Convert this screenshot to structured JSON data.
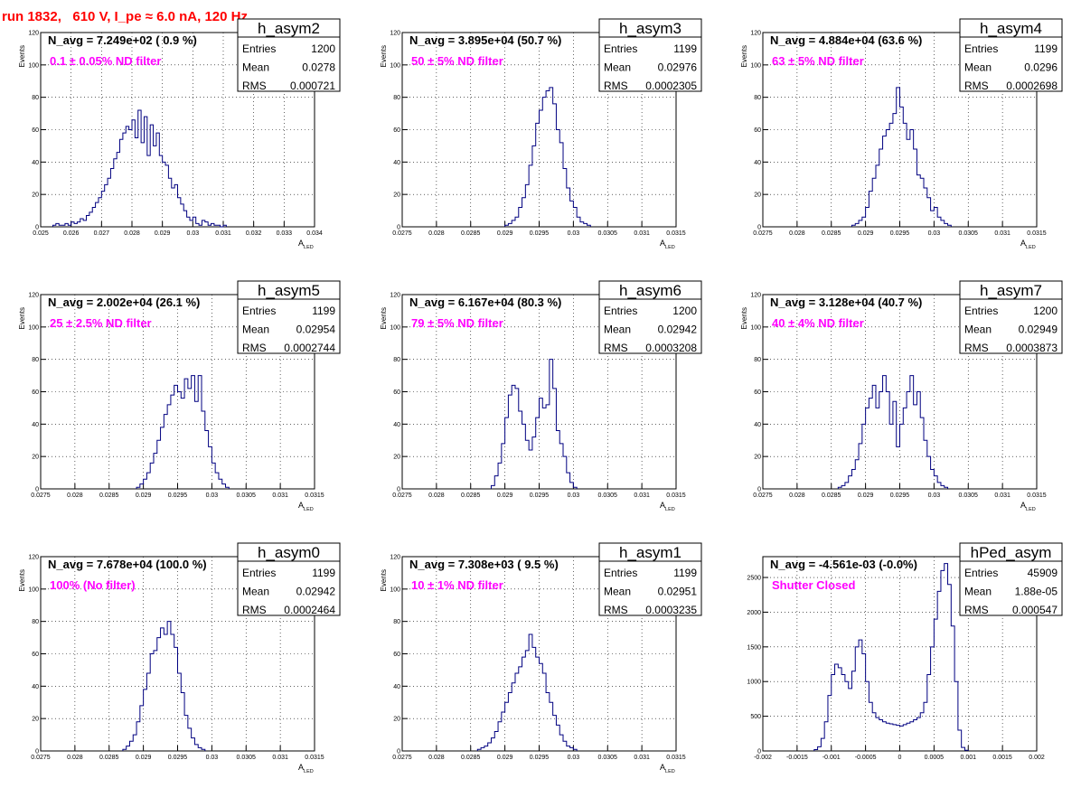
{
  "page": {
    "title": "run 1832,   610 V, I_pe ≈ 6.0 nA, 120 Hz"
  },
  "chart_data": [
    {
      "type": "histogram",
      "name": "h_asym2",
      "navg": "N_avg = 7.249e+02 ( 0.9 %)",
      "note": "0.1 ± 0.05% ND filter",
      "stats": {
        "entries": "1200",
        "mean": "0.0278",
        "rms": "0.000721"
      },
      "xlim": [
        0.025,
        0.034
      ],
      "ylim": [
        0,
        120
      ],
      "xticks": [
        "0.025",
        "0.026",
        "0.027",
        "0.028",
        "0.029",
        "0.03",
        "0.031",
        "0.032",
        "0.033",
        "0.034"
      ],
      "yticks": [
        "0",
        "20",
        "40",
        "60",
        "80",
        "100",
        "120"
      ],
      "xlabel": "A",
      "xlabel_sub": "LED",
      "ylabel": "Events",
      "x_start": 0.0254,
      "bin_width": 0.0001,
      "values": [
        1,
        2,
        1,
        1,
        2,
        1,
        3,
        2,
        3,
        5,
        4,
        7,
        9,
        12,
        15,
        18,
        22,
        26,
        30,
        36,
        42,
        46,
        54,
        58,
        62,
        60,
        66,
        55,
        72,
        52,
        68,
        44,
        63,
        50,
        58,
        44,
        40,
        38,
        30,
        24,
        26,
        18,
        14,
        10,
        6,
        4,
        6,
        2,
        1,
        4,
        3,
        1,
        2,
        1,
        1,
        0,
        1
      ]
    },
    {
      "type": "histogram",
      "name": "h_asym3",
      "navg": "N_avg = 3.895e+04 (50.7 %)",
      "note": "50 ± 5% ND filter",
      "stats": {
        "entries": "1199",
        "mean": "0.02976",
        "rms": "0.0002305"
      },
      "xlim": [
        0.0275,
        0.0315
      ],
      "ylim": [
        0,
        120
      ],
      "xticks": [
        "0.0275",
        "0.028",
        "0.0285",
        "0.029",
        "0.0295",
        "0.03",
        "0.0305",
        "0.031",
        "0.0315"
      ],
      "yticks": [
        "0",
        "20",
        "40",
        "60",
        "80",
        "100",
        "120"
      ],
      "xlabel": "A",
      "xlabel_sub": "LED",
      "ylabel": "Events",
      "x_start": 0.029,
      "bin_width": 5e-05,
      "values": [
        1,
        2,
        4,
        6,
        12,
        18,
        26,
        38,
        50,
        64,
        72,
        80,
        84,
        86,
        76,
        60,
        52,
        36,
        24,
        16,
        12,
        6,
        3,
        2,
        1
      ]
    },
    {
      "type": "histogram",
      "name": "h_asym4",
      "navg": "N_avg = 4.884e+04 (63.6 %)",
      "note": "63 ± 5% ND filter",
      "stats": {
        "entries": "1199",
        "mean": "0.0296",
        "rms": "0.0002698"
      },
      "xlim": [
        0.0275,
        0.0315
      ],
      "ylim": [
        0,
        120
      ],
      "xticks": [
        "0.0275",
        "0.028",
        "0.0285",
        "0.029",
        "0.0295",
        "0.03",
        "0.0305",
        "0.031",
        "0.0315"
      ],
      "yticks": [
        "0",
        "20",
        "40",
        "60",
        "80",
        "100",
        "120"
      ],
      "xlabel": "A",
      "xlabel_sub": "LED",
      "ylabel": "Events",
      "x_start": 0.0288,
      "bin_width": 5e-05,
      "values": [
        1,
        2,
        4,
        6,
        12,
        22,
        30,
        38,
        48,
        56,
        60,
        64,
        70,
        86,
        74,
        64,
        54,
        60,
        48,
        32,
        30,
        24,
        18,
        10,
        12,
        6,
        4,
        2,
        1
      ]
    },
    {
      "type": "histogram",
      "name": "h_asym5",
      "navg": "N_avg = 2.002e+04 (26.1 %)",
      "note": "25 ± 2.5% ND filter",
      "stats": {
        "entries": "1199",
        "mean": "0.02954",
        "rms": "0.0002744"
      },
      "xlim": [
        0.0275,
        0.0315
      ],
      "ylim": [
        0,
        120
      ],
      "xticks": [
        "0.0275",
        "0.028",
        "0.0285",
        "0.029",
        "0.0295",
        "0.03",
        "0.0305",
        "0.031",
        "0.0315"
      ],
      "yticks": [
        "0",
        "20",
        "40",
        "60",
        "80",
        "100",
        "120"
      ],
      "xlabel": "A",
      "xlabel_sub": "LED",
      "ylabel": "Events",
      "x_start": 0.0289,
      "bin_width": 5e-05,
      "values": [
        1,
        3,
        6,
        10,
        16,
        22,
        30,
        38,
        46,
        52,
        58,
        64,
        60,
        56,
        68,
        62,
        70,
        54,
        70,
        48,
        36,
        26,
        16,
        10,
        6,
        3,
        1
      ]
    },
    {
      "type": "histogram",
      "name": "h_asym6",
      "navg": "N_avg = 6.167e+04 (80.3 %)",
      "note": "79 ± 5% ND filter",
      "stats": {
        "entries": "1200",
        "mean": "0.02942",
        "rms": "0.0003208"
      },
      "xlim": [
        0.0275,
        0.0315
      ],
      "ylim": [
        0,
        120
      ],
      "xticks": [
        "0.0275",
        "0.028",
        "0.0285",
        "0.029",
        "0.0295",
        "0.03",
        "0.0305",
        "0.031",
        "0.0315"
      ],
      "yticks": [
        "0",
        "20",
        "40",
        "60",
        "80",
        "100",
        "120"
      ],
      "xlabel": "A",
      "xlabel_sub": "LED",
      "ylabel": "Events",
      "x_start": 0.0288,
      "bin_width": 5e-05,
      "values": [
        2,
        8,
        16,
        28,
        44,
        58,
        64,
        62,
        48,
        40,
        30,
        24,
        32,
        44,
        56,
        50,
        52,
        80,
        62,
        36,
        28,
        20,
        10,
        4,
        1
      ]
    },
    {
      "type": "histogram",
      "name": "h_asym7",
      "navg": "N_avg = 3.128e+04 (40.7 %)",
      "note": "40 ± 4% ND filter",
      "stats": {
        "entries": "1200",
        "mean": "0.02949",
        "rms": "0.0003873"
      },
      "xlim": [
        0.0275,
        0.0315
      ],
      "ylim": [
        0,
        120
      ],
      "xticks": [
        "0.0275",
        "0.028",
        "0.0285",
        "0.029",
        "0.0295",
        "0.03",
        "0.0305",
        "0.031",
        "0.0315"
      ],
      "yticks": [
        "0",
        "20",
        "40",
        "60",
        "80",
        "100",
        "120"
      ],
      "xlabel": "A",
      "xlabel_sub": "LED",
      "ylabel": "Events",
      "x_start": 0.0286,
      "bin_width": 5e-05,
      "values": [
        1,
        2,
        4,
        8,
        12,
        18,
        28,
        40,
        50,
        56,
        64,
        50,
        60,
        70,
        60,
        40,
        54,
        26,
        40,
        50,
        60,
        70,
        52,
        60,
        44,
        30,
        20,
        12,
        8,
        4,
        2,
        1
      ]
    },
    {
      "type": "histogram",
      "name": "h_asym0",
      "navg": "N_avg = 7.678e+04 (100.0 %)",
      "note": "100% (No filter)",
      "stats": {
        "entries": "1199",
        "mean": "0.02942",
        "rms": "0.0002464"
      },
      "xlim": [
        0.0275,
        0.0315
      ],
      "ylim": [
        0,
        120
      ],
      "xticks": [
        "0.0275",
        "0.028",
        "0.0285",
        "0.029",
        "0.0295",
        "0.03",
        "0.0305",
        "0.031",
        "0.0315"
      ],
      "yticks": [
        "0",
        "20",
        "40",
        "60",
        "80",
        "100",
        "120"
      ],
      "xlabel": "A",
      "xlabel_sub": "LED",
      "ylabel": "Events",
      "x_start": 0.0287,
      "bin_width": 5e-05,
      "values": [
        1,
        3,
        6,
        10,
        18,
        28,
        38,
        48,
        60,
        62,
        70,
        76,
        72,
        80,
        72,
        64,
        48,
        36,
        22,
        14,
        8,
        4,
        2,
        1
      ]
    },
    {
      "type": "histogram",
      "name": "h_asym1",
      "navg": "N_avg = 7.308e+03 ( 9.5 %)",
      "note": "10 ± 1% ND filter",
      "stats": {
        "entries": "1199",
        "mean": "0.02951",
        "rms": "0.0003235"
      },
      "xlim": [
        0.0275,
        0.0315
      ],
      "ylim": [
        0,
        120
      ],
      "xticks": [
        "0.0275",
        "0.028",
        "0.0285",
        "0.029",
        "0.0295",
        "0.03",
        "0.0305",
        "0.031",
        "0.0315"
      ],
      "yticks": [
        "0",
        "20",
        "40",
        "60",
        "80",
        "100",
        "120"
      ],
      "xlabel": "A",
      "xlabel_sub": "LED",
      "ylabel": "Events",
      "x_start": 0.0286,
      "bin_width": 5e-05,
      "values": [
        1,
        2,
        3,
        5,
        8,
        12,
        18,
        24,
        30,
        36,
        42,
        48,
        52,
        58,
        62,
        72,
        64,
        58,
        54,
        48,
        36,
        30,
        22,
        16,
        10,
        6,
        3,
        2,
        1
      ]
    },
    {
      "type": "histogram",
      "name": "hPed_asym",
      "navg": "N_avg = -4.561e-03 (-0.0%)",
      "note": "Shutter Closed",
      "stats": {
        "entries": "45909",
        "mean": "1.88e-05",
        "rms": "0.000547"
      },
      "xlim": [
        -0.002,
        0.002
      ],
      "ylim": [
        0,
        2800
      ],
      "xticks": [
        "-0.002",
        "-0.0015",
        "-0.001",
        "-0.0005",
        "0",
        "0.0005",
        "0.001",
        "0.0015",
        "0.002"
      ],
      "yticks": [
        "0",
        "500",
        "1000",
        "1500",
        "2000",
        "2500"
      ],
      "xlabel": "",
      "xlabel_sub": "",
      "ylabel": "",
      "x_start": -0.00125,
      "bin_width": 5e-05,
      "values": [
        20,
        60,
        180,
        420,
        800,
        1100,
        1250,
        1200,
        1100,
        1000,
        900,
        1150,
        1500,
        1600,
        1400,
        1000,
        700,
        550,
        480,
        450,
        420,
        400,
        390,
        380,
        370,
        360,
        380,
        400,
        420,
        450,
        480,
        550,
        700,
        1100,
        1500,
        1900,
        2300,
        2600,
        2700,
        2400,
        1800,
        1000,
        300,
        50,
        10
      ]
    }
  ]
}
